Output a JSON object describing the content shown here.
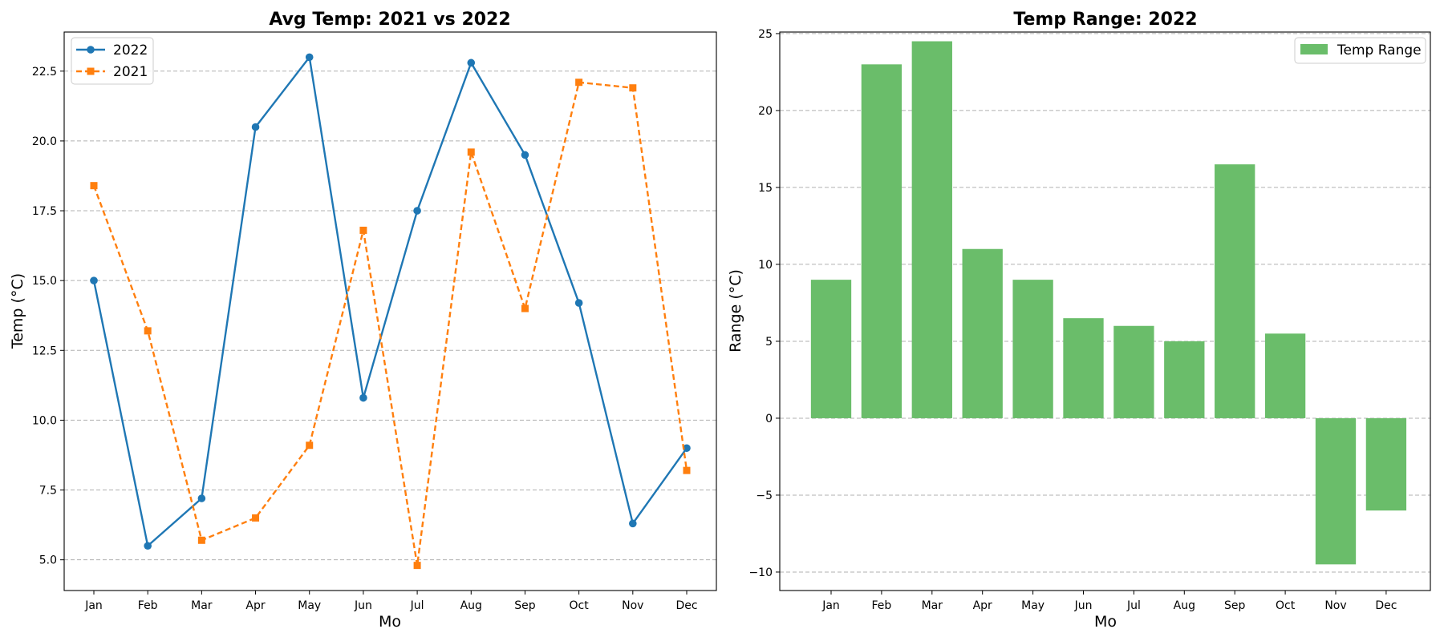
{
  "chart_data": [
    {
      "type": "line",
      "title": "Avg Temp: 2021 vs 2022",
      "xlabel": "Mo",
      "ylabel": "Temp (°C)",
      "categories": [
        "Jan",
        "Feb",
        "Mar",
        "Apr",
        "May",
        "Jun",
        "Jul",
        "Aug",
        "Sep",
        "Oct",
        "Nov",
        "Dec"
      ],
      "ylim": [
        3.9,
        23.9
      ],
      "yticks": [
        5.0,
        7.5,
        10.0,
        12.5,
        15.0,
        17.5,
        20.0,
        22.5
      ],
      "ytick_labels": [
        "5.0",
        "7.5",
        "10.0",
        "12.5",
        "15.0",
        "17.5",
        "20.0",
        "22.5"
      ],
      "grid": "y",
      "legend_position": "top-left",
      "series": [
        {
          "name": "2022",
          "color": "#1f77b4",
          "linestyle": "solid",
          "marker": "circle",
          "values": [
            15.0,
            5.5,
            7.2,
            20.5,
            23.0,
            10.8,
            17.5,
            22.8,
            19.5,
            14.2,
            6.3,
            9.0
          ]
        },
        {
          "name": "2021",
          "color": "#ff7f0e",
          "linestyle": "dashed",
          "marker": "square",
          "values": [
            18.4,
            13.2,
            5.7,
            6.5,
            9.1,
            16.8,
            4.8,
            19.6,
            14.0,
            22.1,
            21.9,
            8.2
          ]
        }
      ]
    },
    {
      "type": "bar",
      "title": "Temp Range: 2022",
      "xlabel": "Mo",
      "ylabel": "Range (°C)",
      "categories": [
        "Jan",
        "Feb",
        "Mar",
        "Apr",
        "May",
        "Jun",
        "Jul",
        "Aug",
        "Sep",
        "Oct",
        "Nov",
        "Dec"
      ],
      "ylim": [
        -11.2,
        25.1
      ],
      "yticks": [
        -10,
        -5,
        0,
        5,
        10,
        15,
        20,
        25
      ],
      "ytick_labels": [
        "−10",
        "−5",
        "0",
        "5",
        "10",
        "15",
        "20",
        "25"
      ],
      "grid": "y",
      "legend_position": "top-right",
      "series": [
        {
          "name": "Temp Range",
          "color": "#6abd6a",
          "values": [
            9.0,
            23.0,
            24.5,
            11.0,
            9.0,
            6.5,
            6.0,
            5.0,
            16.5,
            5.5,
            -9.5,
            -6.0
          ]
        }
      ]
    }
  ]
}
